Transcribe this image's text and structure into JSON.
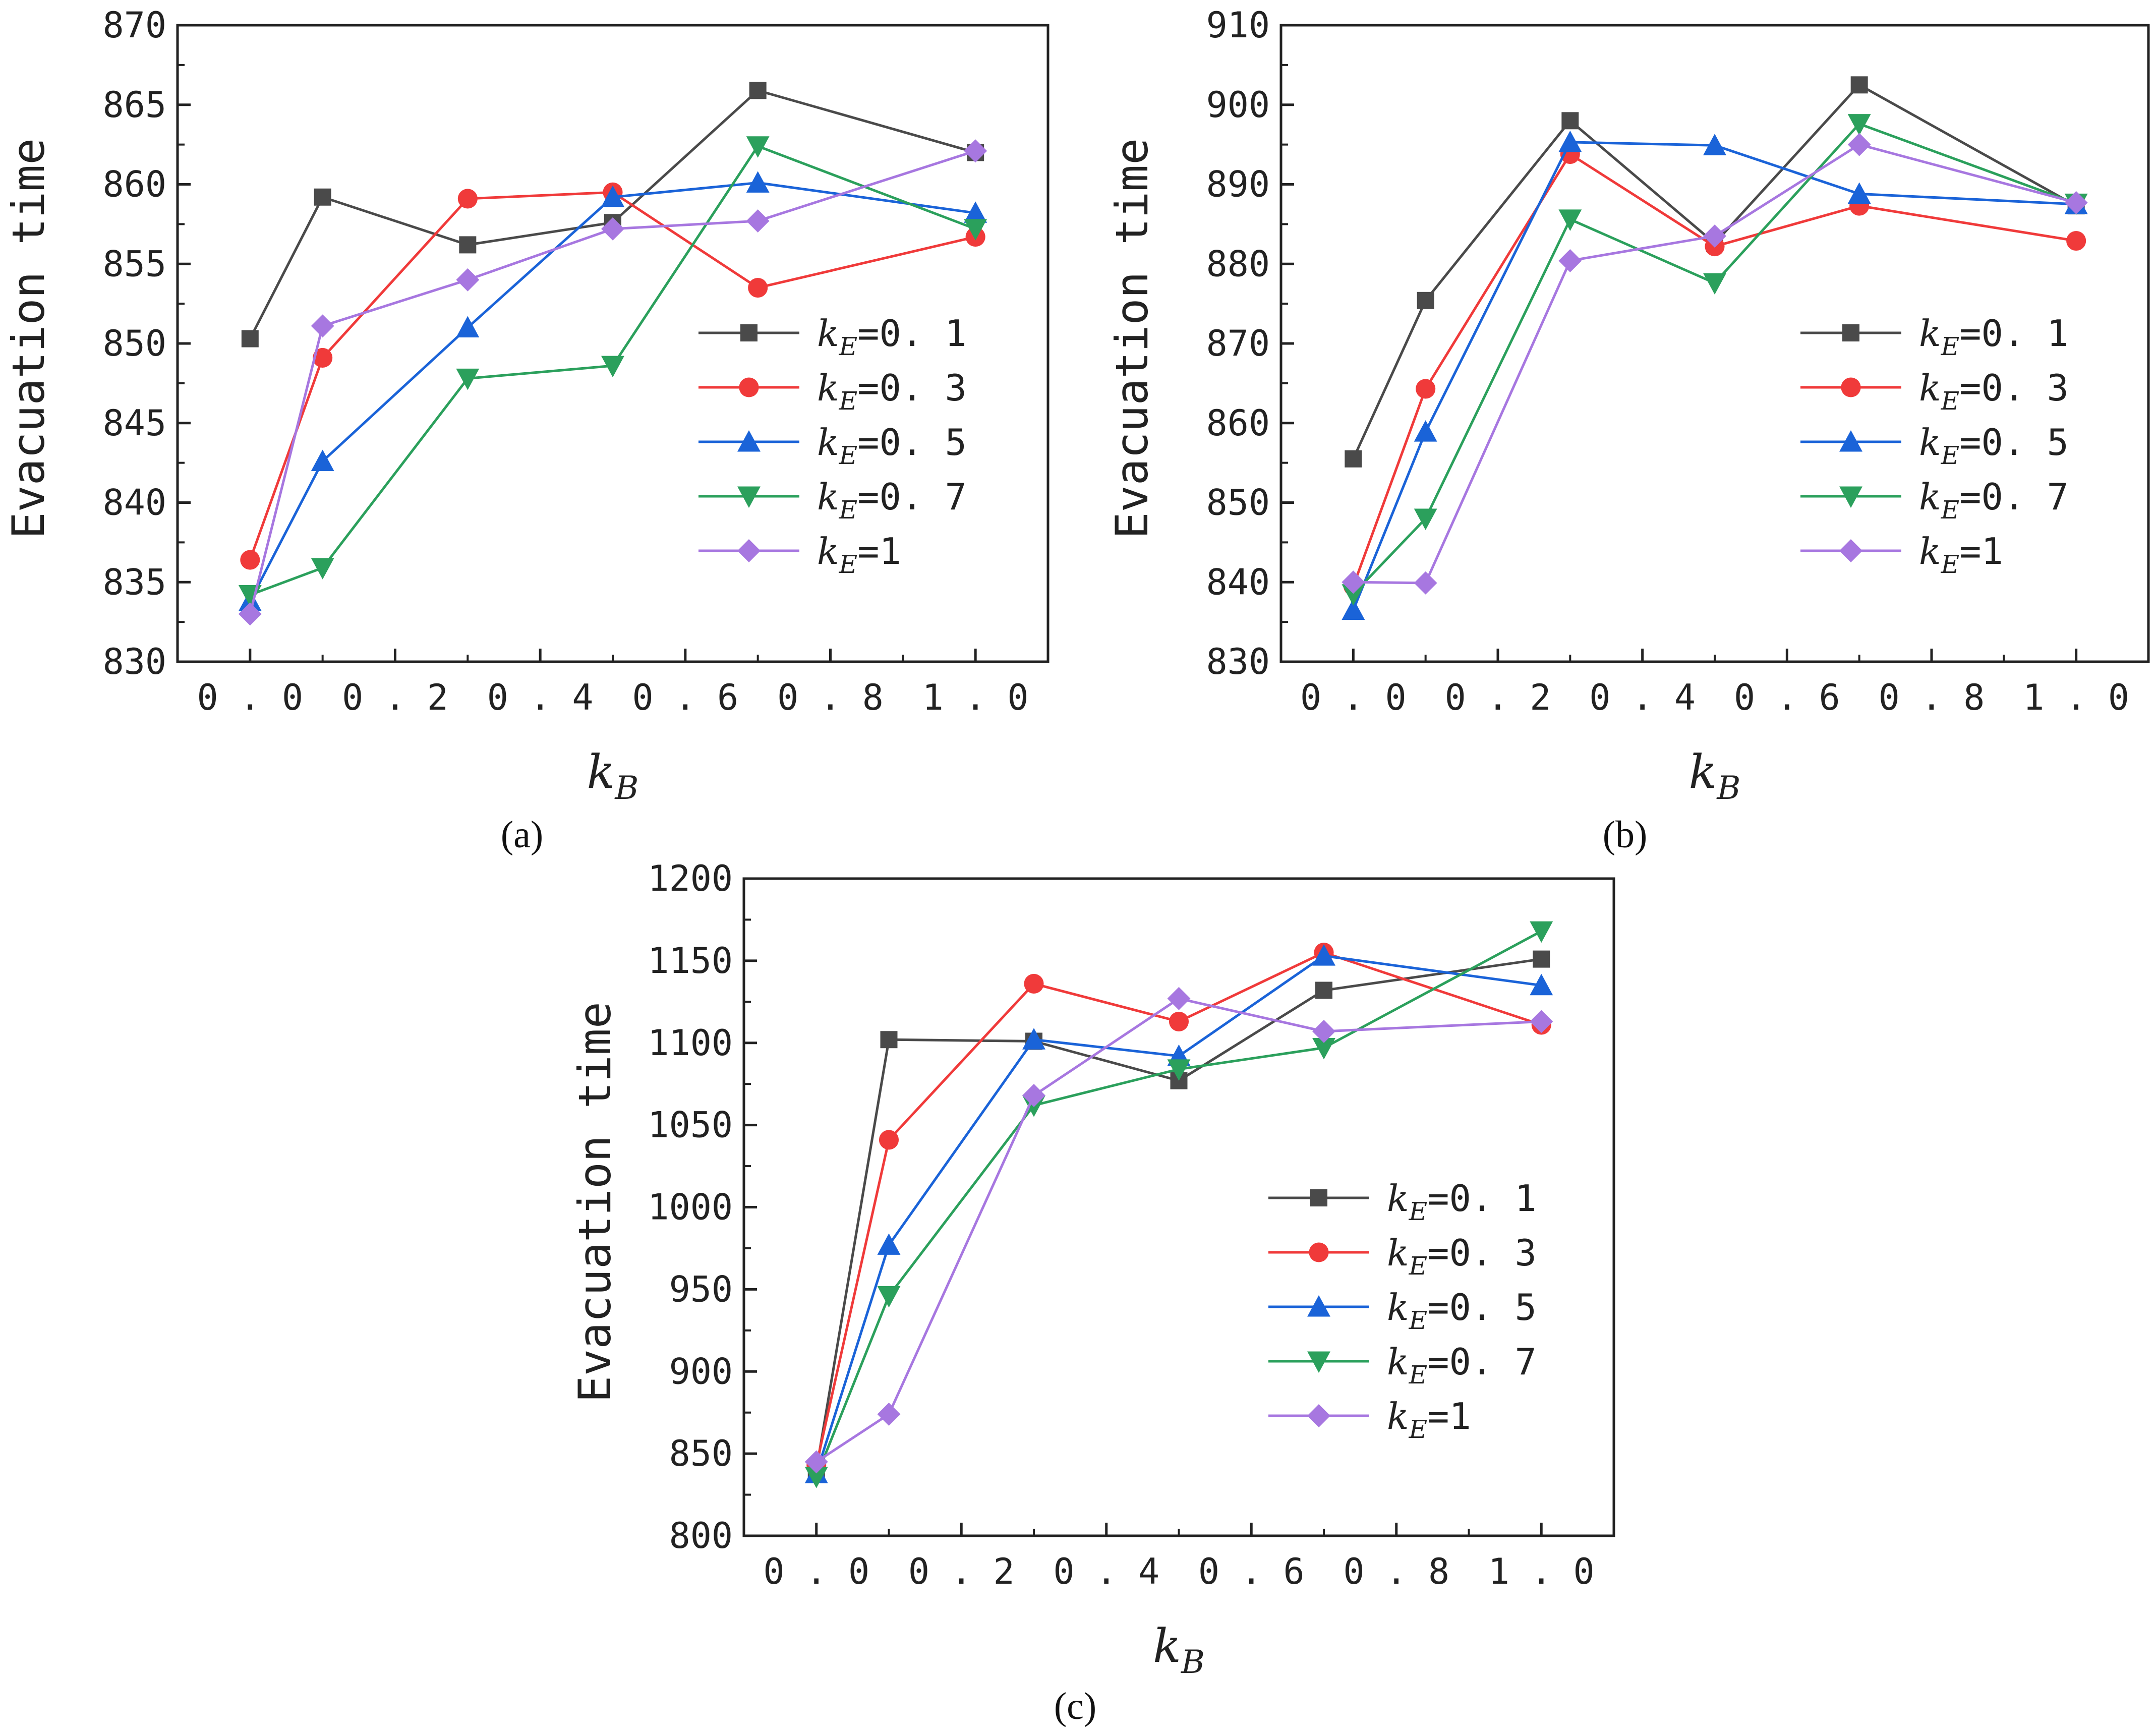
{
  "figure_labels": {
    "a": "(a)",
    "b": "(b)",
    "c": "(c)"
  },
  "chart_data": [
    {
      "id": "a",
      "type": "line",
      "title": "",
      "xlabel": "kB",
      "ylabel": "Evacuation time",
      "xlim": [
        -0.1,
        1.1
      ],
      "ylim": [
        830,
        870
      ],
      "xticks": [
        "0.0",
        "0.2",
        "0.4",
        "0.6",
        "0.8",
        "1.0"
      ],
      "yticks": [
        830,
        835,
        840,
        845,
        850,
        855,
        860,
        865,
        870
      ],
      "grid": false,
      "legend_position": "right",
      "x": [
        0,
        0.1,
        0.3,
        0.5,
        0.7,
        1.0
      ],
      "series": [
        {
          "name": "kE=0.1",
          "label_pre": "k",
          "label_sub": "E",
          "label_post": "=0.1",
          "color": "#4a4a4a",
          "marker": "square",
          "values": [
            850.3,
            859.2,
            856.2,
            857.6,
            865.9,
            862.0
          ]
        },
        {
          "name": "kE=0.3",
          "label_pre": "k",
          "label_sub": "E",
          "label_post": "=0.3",
          "color": "#f03a3a",
          "marker": "circle",
          "values": [
            836.4,
            849.1,
            859.1,
            859.5,
            853.5,
            856.7
          ]
        },
        {
          "name": "kE=0.5",
          "label_pre": "k",
          "label_sub": "E",
          "label_post": "=0.5",
          "color": "#1a63d8",
          "marker": "triangle-up",
          "values": [
            833.8,
            842.6,
            851.0,
            859.2,
            860.1,
            858.2
          ]
        },
        {
          "name": "kE=0.7",
          "label_pre": "k",
          "label_sub": "E",
          "label_post": "=0.7",
          "color": "#2ba05c",
          "marker": "triangle-down",
          "values": [
            834.2,
            835.9,
            847.8,
            848.6,
            862.4,
            857.2
          ]
        },
        {
          "name": "kE=1",
          "label_pre": "k",
          "label_sub": "E",
          "label_post": "=1",
          "color": "#a777e0",
          "marker": "diamond",
          "values": [
            833.0,
            851.1,
            854.0,
            857.2,
            857.7,
            862.1
          ]
        }
      ]
    },
    {
      "id": "b",
      "type": "line",
      "title": "",
      "xlabel": "kB",
      "ylabel": "Evacuation time",
      "xlim": [
        -0.1,
        1.1
      ],
      "ylim": [
        830,
        910
      ],
      "xticks": [
        "0.0",
        "0.2",
        "0.4",
        "0.6",
        "0.8",
        "1.0"
      ],
      "yticks": [
        830,
        840,
        850,
        860,
        870,
        880,
        890,
        900,
        910
      ],
      "grid": false,
      "legend_position": "right",
      "x": [
        0,
        0.1,
        0.3,
        0.5,
        0.7,
        1.0
      ],
      "series": [
        {
          "name": "kE=0.1",
          "label_pre": "k",
          "label_sub": "E",
          "label_post": "=0.1",
          "color": "#4a4a4a",
          "marker": "square",
          "values": [
            855.5,
            875.4,
            898.0,
            882.6,
            902.5,
            887.3
          ]
        },
        {
          "name": "kE=0.3",
          "label_pre": "k",
          "label_sub": "E",
          "label_post": "=0.3",
          "color": "#f03a3a",
          "marker": "circle",
          "values": [
            839.5,
            864.3,
            893.8,
            882.2,
            887.3,
            882.9
          ]
        },
        {
          "name": "kE=0.5",
          "label_pre": "k",
          "label_sub": "E",
          "label_post": "=0.5",
          "color": "#1a63d8",
          "marker": "triangle-up",
          "values": [
            836.5,
            858.9,
            895.3,
            894.9,
            888.8,
            887.5
          ]
        },
        {
          "name": "kE=0.7",
          "label_pre": "k",
          "label_sub": "E",
          "label_post": "=0.7",
          "color": "#2ba05c",
          "marker": "triangle-down",
          "values": [
            838.5,
            848.0,
            885.6,
            877.6,
            897.6,
            887.6
          ]
        },
        {
          "name": "kE=1",
          "label_pre": "k",
          "label_sub": "E",
          "label_post": "=1",
          "color": "#a777e0",
          "marker": "diamond",
          "values": [
            840.0,
            839.9,
            880.4,
            883.5,
            895.0,
            887.7
          ]
        }
      ]
    },
    {
      "id": "c",
      "type": "line",
      "title": "",
      "xlabel": "kB",
      "ylabel": "Evacuation time",
      "xlim": [
        -0.1,
        1.1
      ],
      "ylim": [
        800,
        1200
      ],
      "xticks": [
        "0.0",
        "0.2",
        "0.4",
        "0.6",
        "0.8",
        "1.0"
      ],
      "yticks": [
        800,
        850,
        900,
        950,
        1000,
        1050,
        1100,
        1150,
        1200
      ],
      "grid": false,
      "legend_position": "right",
      "x": [
        0,
        0.1,
        0.3,
        0.5,
        0.7,
        1.0
      ],
      "series": [
        {
          "name": "kE=0.1",
          "label_pre": "k",
          "label_sub": "E",
          "label_post": "=0.1",
          "color": "#4a4a4a",
          "marker": "square",
          "values": [
            840,
            1102,
            1101,
            1077,
            1132,
            1151
          ]
        },
        {
          "name": "kE=0.3",
          "label_pre": "k",
          "label_sub": "E",
          "label_post": "=0.3",
          "color": "#f03a3a",
          "marker": "circle",
          "values": [
            843,
            1041,
            1136,
            1113,
            1155,
            1111
          ]
        },
        {
          "name": "kE=0.5",
          "label_pre": "k",
          "label_sub": "E",
          "label_post": "=0.5",
          "color": "#1a63d8",
          "marker": "triangle-up",
          "values": [
            838,
            977,
            1102,
            1092,
            1153,
            1135
          ]
        },
        {
          "name": "kE=0.7",
          "label_pre": "k",
          "label_sub": "E",
          "label_post": "=0.7",
          "color": "#2ba05c",
          "marker": "triangle-down",
          "values": [
            836,
            946,
            1062,
            1084,
            1097,
            1168
          ]
        },
        {
          "name": "kE=1",
          "label_pre": "k",
          "label_sub": "E",
          "label_post": "=1",
          "color": "#a777e0",
          "marker": "diamond",
          "values": [
            845,
            874,
            1068,
            1127,
            1107,
            1113
          ]
        }
      ]
    }
  ]
}
